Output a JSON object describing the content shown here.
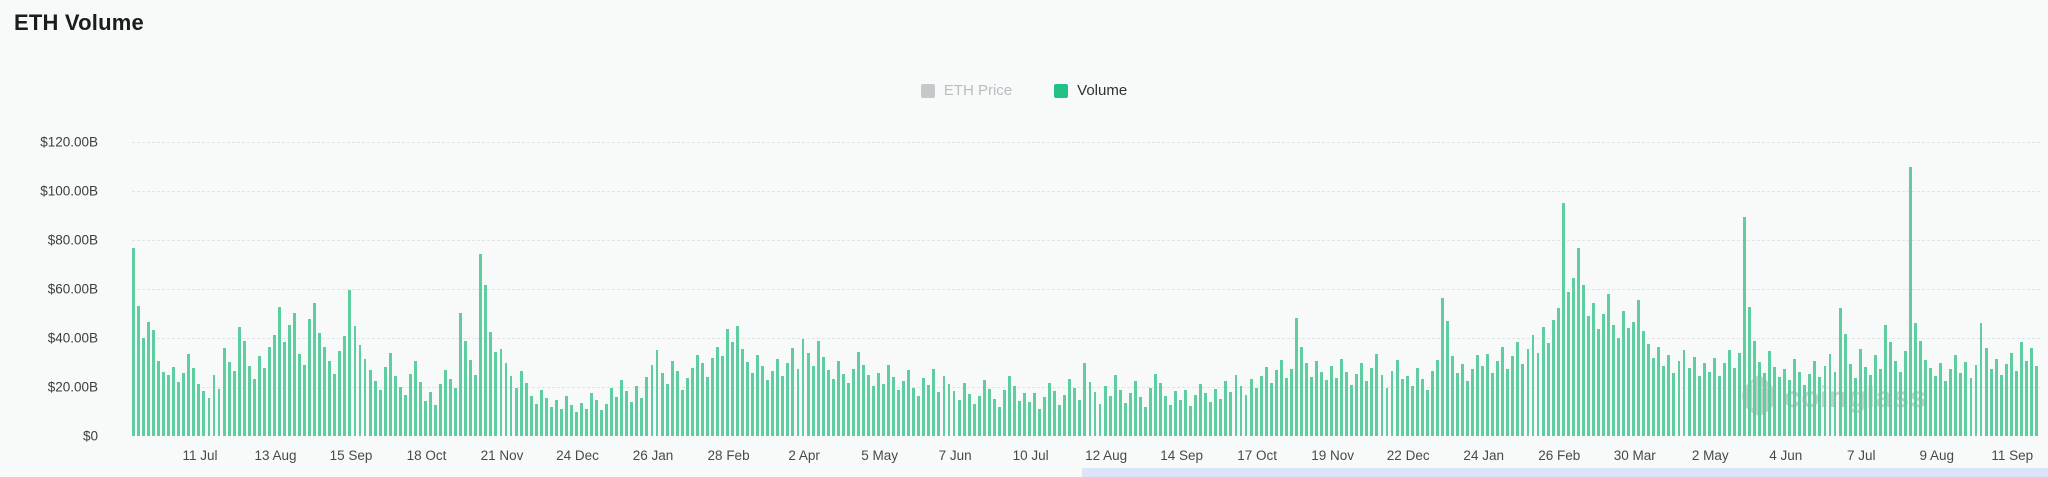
{
  "title": "ETH Volume",
  "legend": [
    {
      "label": "ETH Price",
      "swatch_color": "#c5c7cb",
      "text_color": "#b9bcc2",
      "active": false
    },
    {
      "label": "Volume",
      "swatch_color": "#22c186",
      "text_color": "#2e3134",
      "active": true
    }
  ],
  "watermark": {
    "text": "coinglass",
    "logo_icon": "coinglass-leaf-logo"
  },
  "chart_data": {
    "type": "bar",
    "title": "ETH Volume",
    "xlabel": "",
    "ylabel": "",
    "unit": "USD billions",
    "ylim": [
      0,
      120
    ],
    "grid": "horizontal-dashed",
    "legend_position": "top-center",
    "bar_color": "#5ecda0",
    "y_ticks": [
      {
        "label": "$120.00B",
        "value": 120
      },
      {
        "label": "$100.00B",
        "value": 100
      },
      {
        "label": "$80.00B",
        "value": 80
      },
      {
        "label": "$60.00B",
        "value": 60
      },
      {
        "label": "$40.00B",
        "value": 40
      },
      {
        "label": "$20.00B",
        "value": 20
      },
      {
        "label": "$0",
        "value": 0
      }
    ],
    "x_tick_labels": [
      "11 Jul",
      "13 Aug",
      "15 Sep",
      "18 Oct",
      "21 Nov",
      "24 Dec",
      "26 Jan",
      "28 Feb",
      "2 Apr",
      "5 May",
      "7 Jun",
      "10 Jul",
      "12 Aug",
      "14 Sep",
      "17 Oct",
      "19 Nov",
      "22 Dec",
      "24 Jan",
      "26 Feb",
      "30 Mar",
      "2 May",
      "4 Jun",
      "7 Jul",
      "9 Aug",
      "11 Sep"
    ],
    "x_tick_first_bar_index": 13,
    "x_tick_bar_step": 15,
    "series": [
      {
        "name": "Volume",
        "values": [
          76.6,
          53.2,
          39.8,
          46.5,
          43.1,
          30.5,
          26.2,
          24.8,
          28.3,
          22.1,
          25.7,
          33.4,
          27.9,
          21.4,
          18.2,
          15.6,
          24.9,
          19.3,
          35.8,
          30.2,
          26.7,
          44.6,
          38.9,
          28.4,
          23.1,
          32.5,
          27.8,
          36.2,
          41.3,
          52.7,
          38.4,
          45.2,
          50.1,
          33.6,
          28.9,
          47.8,
          54.3,
          42.0,
          36.5,
          30.8,
          25.4,
          34.7,
          40.9,
          59.4,
          44.8,
          37.2,
          31.5,
          26.8,
          22.3,
          18.7,
          28.1,
          33.9,
          24.6,
          20.2,
          16.8,
          25.3,
          30.7,
          21.9,
          14.2,
          17.8,
          12.5,
          21.3,
          26.9,
          23.4,
          19.6,
          50.4,
          38.6,
          31.2,
          24.7,
          74.3,
          61.8,
          42.5,
          34.1,
          35.6,
          29.8,
          24.3,
          19.7,
          26.4,
          21.8,
          16.5,
          13.2,
          18.9,
          15.4,
          11.8,
          14.6,
          10.9,
          16.2,
          12.7,
          9.8,
          13.5,
          11.2,
          17.6,
          14.8,
          10.5,
          12.9,
          19.4,
          16.1,
          22.7,
          18.3,
          13.9,
          20.6,
          15.7,
          24.2,
          28.9,
          35.3,
          25.6,
          21.2,
          30.8,
          26.4,
          18.7,
          23.5,
          27.9,
          33.2,
          29.6,
          24.1,
          31.7,
          36.4,
          32.8,
          43.6,
          38.2,
          44.9,
          35.7,
          30.4,
          25.8,
          33.1,
          28.6,
          22.9,
          26.7,
          31.4,
          24.3,
          29.8,
          35.9,
          27.2,
          39.4,
          33.8,
          28.5,
          38.7,
          32.1,
          26.9,
          23.4,
          30.6,
          25.2,
          21.8,
          27.5,
          34.3,
          29.1,
          24.7,
          20.3,
          25.6,
          21.3,
          28.9,
          24.2,
          18.7,
          22.5,
          26.8,
          19.4,
          16.2,
          23.7,
          20.9,
          27.3,
          17.8,
          24.6,
          21.1,
          18.4,
          14.7,
          21.6,
          17.2,
          12.9,
          16.5,
          22.8,
          19.3,
          15.1,
          11.7,
          18.9,
          24.3,
          20.5,
          14.2,
          17.6,
          13.8,
          17.4,
          11.2,
          15.9,
          21.7,
          18.3,
          12.6,
          16.8,
          23.4,
          19.7,
          14.5,
          29.8,
          22.1,
          17.9,
          13.2,
          20.6,
          16.3,
          24.8,
          18.9,
          13.5,
          17.7,
          22.4,
          15.8,
          11.9,
          19.6,
          25.3,
          21.7,
          16.4,
          12.8,
          18.2,
          14.6,
          18.9,
          12.4,
          16.7,
          21.3,
          17.5,
          13.8,
          19.2,
          15.3,
          22.6,
          18.1,
          24.9,
          20.4,
          16.8,
          23.2,
          19.7,
          24.5,
          28.3,
          21.6,
          26.9,
          31.2,
          23.8,
          27.4,
          48.3,
          36.5,
          29.7,
          24.2,
          30.8,
          26.3,
          22.7,
          28.4,
          23.7,
          31.5,
          26.2,
          20.8,
          25.4,
          29.9,
          22.3,
          27.8,
          33.6,
          24.9,
          19.5,
          26.7,
          31.2,
          23.4,
          24.6,
          20.3,
          27.8,
          23.2,
          18.7,
          26.4,
          31.2,
          56.2,
          47.1,
          32.8,
          25.9,
          29.4,
          22.6,
          27.3,
          33.1,
          28.6,
          33.4,
          25.9,
          30.7,
          36.2,
          27.4,
          32.8,
          38.5,
          29.3,
          35.7,
          41.2,
          33.9,
          44.6,
          38.1,
          47.3,
          52.4,
          95.2,
          58.7,
          64.3,
          76.8,
          61.5,
          48.9,
          54.2,
          43.7,
          49.6,
          57.8,
          45.3,
          39.8,
          51.2,
          44.1,
          46.7,
          55.4,
          42.8,
          37.5,
          31.9,
          36.4,
          28.7,
          33.2,
          25.8,
          30.6,
          35.3,
          27.9,
          32.4,
          24.6,
          29.8,
          26.3,
          31.8,
          24.5,
          29.7,
          35.2,
          27.6,
          33.9,
          89.4,
          52.8,
          38.6,
          30.4,
          25.7,
          34.8,
          28.2,
          23.9,
          27.4,
          22.8,
          31.6,
          26.3,
          20.9,
          25.5,
          30.8,
          24.2,
          28.7,
          33.4,
          26.1,
          52.3,
          41.7,
          29.5,
          23.8,
          35.6,
          28.3,
          24.7,
          32.9,
          27.5,
          45.2,
          38.4,
          30.6,
          26.2,
          34.7,
          109.6,
          46.3,
          38.9,
          31.2,
          27.8,
          24.6,
          29.8,
          22.3,
          27.4,
          33.1,
          25.7,
          30.2,
          23.5,
          28.9,
          46.2,
          35.8,
          27.3,
          31.6,
          24.9,
          29.4,
          33.7,
          26.4,
          38.2,
          30.5,
          35.9,
          28.6
        ]
      }
    ]
  }
}
